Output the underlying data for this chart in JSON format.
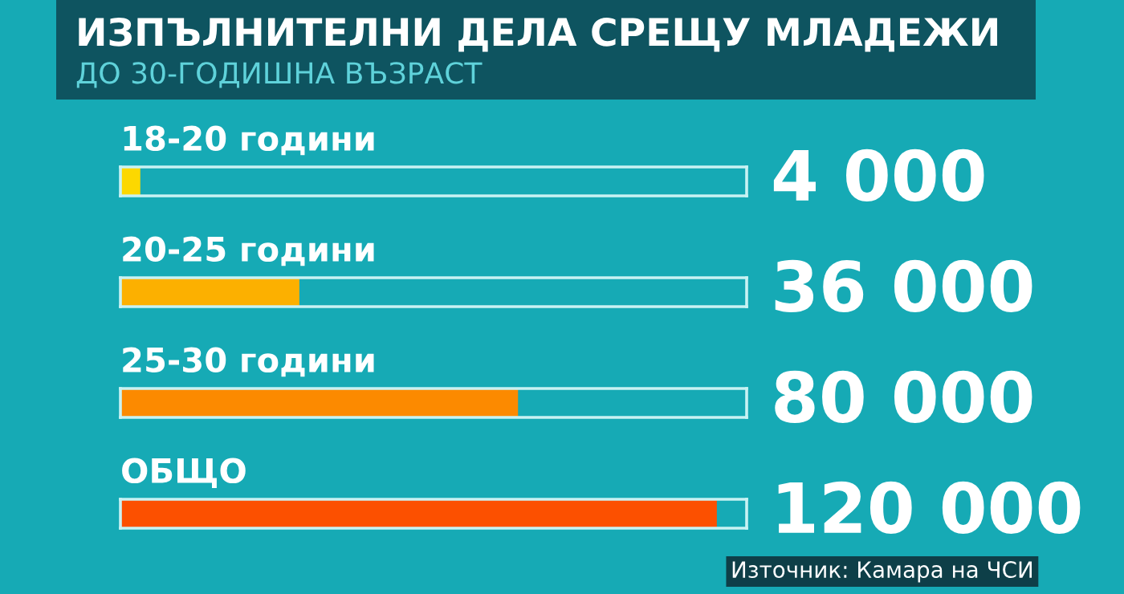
{
  "chart_data": {
    "type": "bar",
    "orientation": "horizontal",
    "title": "ИЗПЪЛНИТЕЛНИ ДЕЛА СРЕЩУ МЛАДЕЖИ",
    "subtitle": "ДО 30-ГОДИШНА ВЪЗРАСТ",
    "categories": [
      "18-20 години",
      "20-25 години",
      "25-30 години",
      "ОБЩО"
    ],
    "values": [
      4000,
      36000,
      80000,
      120000
    ],
    "colors": [
      "#fcd800",
      "#fcb000",
      "#fc8a00",
      "#fc5000"
    ],
    "value_labels": [
      "4 000",
      "36 000",
      "80 000",
      "120 000"
    ],
    "xlim": [
      0,
      126000
    ],
    "annotations": [
      "Източник: Камара на ЧСИ"
    ]
  }
}
